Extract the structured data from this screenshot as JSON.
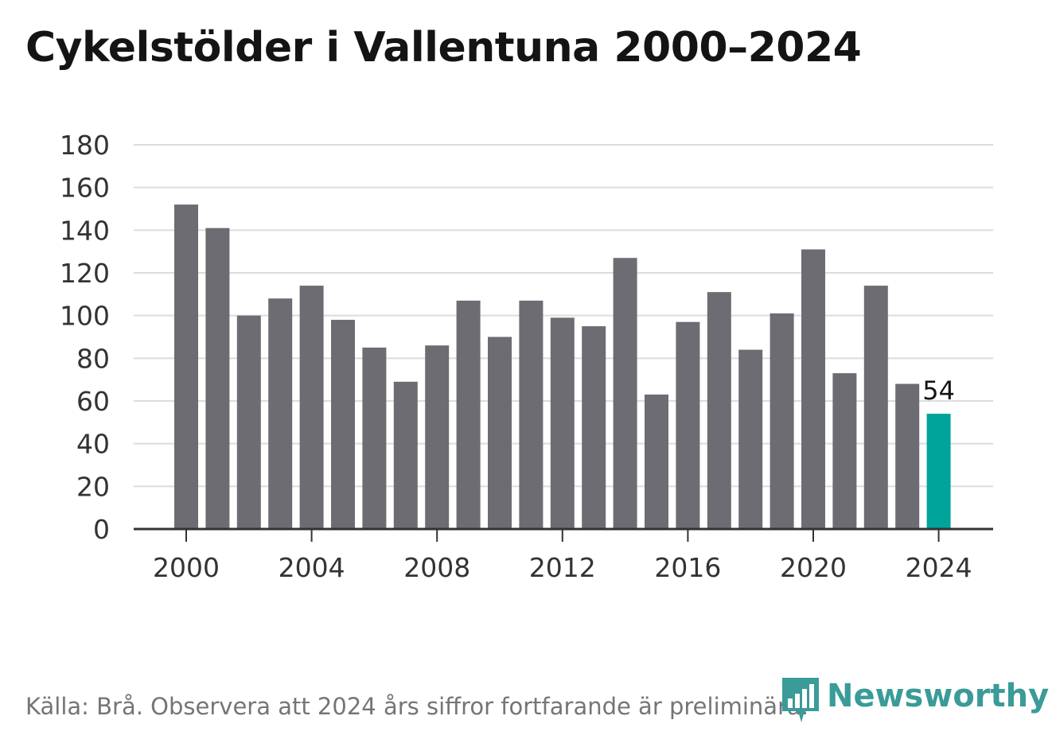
{
  "title": "Cykelstölder i Vallentuna 2000–2024",
  "footer": "Källa: Brå. Observera att 2024 års siffror fortfarande är preliminära.",
  "logo": {
    "text": "Newsworthy",
    "icon": "newsworthy-bar-chart-icon"
  },
  "colors": {
    "bar": "#6d6c72",
    "highlight": "#00a49a",
    "grid": "#dcdcdc",
    "axis": "#333333",
    "brand": "#3a9b98"
  },
  "chart_data": {
    "type": "bar",
    "title": "Cykelstölder i Vallentuna 2000–2024",
    "xlabel": "",
    "ylabel": "",
    "ylim": [
      0,
      180
    ],
    "y_ticks": [
      0,
      20,
      40,
      60,
      80,
      100,
      120,
      140,
      160,
      180
    ],
    "x_tick_labels": [
      "2000",
      "2004",
      "2008",
      "2012",
      "2016",
      "2020",
      "2024"
    ],
    "grid": true,
    "legend": "none",
    "categories": [
      "2000",
      "2001",
      "2002",
      "2003",
      "2004",
      "2005",
      "2006",
      "2007",
      "2008",
      "2009",
      "2010",
      "2011",
      "2012",
      "2013",
      "2014",
      "2015",
      "2016",
      "2017",
      "2018",
      "2019",
      "2020",
      "2021",
      "2022",
      "2023",
      "2024"
    ],
    "values": [
      152,
      141,
      100,
      108,
      114,
      98,
      85,
      69,
      86,
      107,
      90,
      107,
      99,
      95,
      127,
      63,
      97,
      111,
      84,
      101,
      131,
      73,
      114,
      68,
      54
    ],
    "highlight": {
      "category": "2024",
      "label": "54"
    }
  }
}
